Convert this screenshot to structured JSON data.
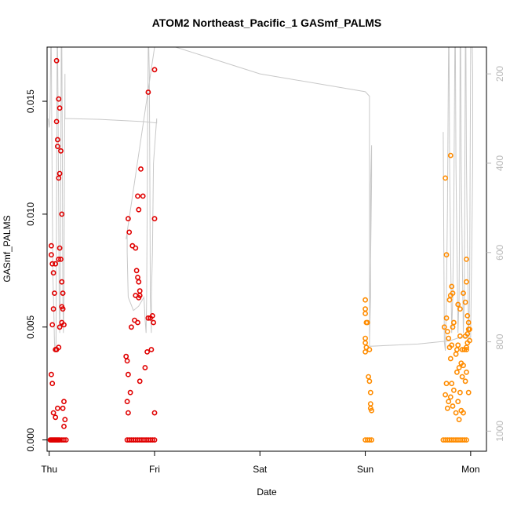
{
  "chart_data": {
    "type": "scatter",
    "title": "ATOM2 Northeast_Pacific_1 GASmf_PALMS",
    "xlabel": "Date",
    "ylabel": "GASmf_PALMS",
    "xlim": [
      -0.02,
      4.15
    ],
    "ylim": [
      -0.0005,
      0.0174
    ],
    "x_ticks": [
      {
        "x": 0,
        "label": "Thu"
      },
      {
        "x": 1,
        "label": "Fri"
      },
      {
        "x": 2,
        "label": "Sat"
      },
      {
        "x": 3,
        "label": "Sun"
      },
      {
        "x": 4,
        "label": "Mon"
      }
    ],
    "y_ticks": [
      {
        "y": 0.0,
        "label": "0.000"
      },
      {
        "y": 0.005,
        "label": "0.005"
      },
      {
        "y": 0.01,
        "label": "0.010"
      },
      {
        "y": 0.015,
        "label": "0.015"
      }
    ],
    "right_axis": {
      "inverted": true,
      "ylim": [
        1045,
        140
      ],
      "ticks": [
        {
          "y": 200,
          "label": "200"
        },
        {
          "y": 400,
          "label": "400"
        },
        {
          "y": 600,
          "label": "600"
        },
        {
          "y": 800,
          "label": "800"
        },
        {
          "y": 1000,
          "label": "1000"
        }
      ],
      "color": "#b8b8b8"
    },
    "grid": false,
    "legend": "none",
    "series": [
      {
        "color": "#e00000",
        "points": [
          [
            0.01,
            0.0
          ],
          [
            0.02,
            0.0
          ],
          [
            0.03,
            0.0
          ],
          [
            0.04,
            0.0
          ],
          [
            0.05,
            0.0
          ],
          [
            0.06,
            0.0
          ],
          [
            0.07,
            0.0
          ],
          [
            0.08,
            0.0
          ],
          [
            0.09,
            0.0
          ],
          [
            0.1,
            0.0
          ],
          [
            0.12,
            0.0
          ],
          [
            0.14,
            0.0
          ],
          [
            0.16,
            0.0
          ],
          [
            0.02,
            0.0029
          ],
          [
            0.03,
            0.0025
          ],
          [
            0.04,
            0.0012
          ],
          [
            0.06,
            0.001
          ],
          [
            0.08,
            0.0014
          ],
          [
            0.13,
            0.0014
          ],
          [
            0.14,
            0.0017
          ],
          [
            0.15,
            0.0009
          ],
          [
            0.14,
            0.0006
          ],
          [
            0.03,
            0.0051
          ],
          [
            0.04,
            0.0058
          ],
          [
            0.05,
            0.0065
          ],
          [
            0.06,
            0.004
          ],
          [
            0.07,
            0.004
          ],
          [
            0.09,
            0.0041
          ],
          [
            0.1,
            0.005
          ],
          [
            0.12,
            0.0052
          ],
          [
            0.14,
            0.0051
          ],
          [
            0.02,
            0.0082
          ],
          [
            0.02,
            0.0086
          ],
          [
            0.03,
            0.0078
          ],
          [
            0.04,
            0.0074
          ],
          [
            0.06,
            0.0078
          ],
          [
            0.09,
            0.008
          ],
          [
            0.1,
            0.0085
          ],
          [
            0.11,
            0.008
          ],
          [
            0.12,
            0.007
          ],
          [
            0.13,
            0.0065
          ],
          [
            0.12,
            0.0059
          ],
          [
            0.13,
            0.0058
          ],
          [
            0.09,
            0.0116
          ],
          [
            0.1,
            0.0118
          ],
          [
            0.12,
            0.01
          ],
          [
            0.07,
            0.0141
          ],
          [
            0.08,
            0.0133
          ],
          [
            0.08,
            0.013
          ],
          [
            0.09,
            0.0151
          ],
          [
            0.1,
            0.0147
          ],
          [
            0.11,
            0.0128
          ],
          [
            0.07,
            0.0168
          ]
        ]
      },
      {
        "color": "#e00000",
        "points": [
          [
            0.74,
            0.0
          ],
          [
            0.76,
            0.0
          ],
          [
            0.78,
            0.0
          ],
          [
            0.8,
            0.0
          ],
          [
            0.82,
            0.0
          ],
          [
            0.84,
            0.0
          ],
          [
            0.86,
            0.0
          ],
          [
            0.88,
            0.0
          ],
          [
            0.9,
            0.0
          ],
          [
            0.92,
            0.0
          ],
          [
            0.94,
            0.0
          ],
          [
            0.96,
            0.0
          ],
          [
            0.98,
            0.0
          ],
          [
            1.0,
            0.0
          ],
          [
            0.74,
            0.0017
          ],
          [
            0.75,
            0.0012
          ],
          [
            0.77,
            0.0021
          ],
          [
            0.86,
            0.0026
          ],
          [
            0.91,
            0.0032
          ],
          [
            0.93,
            0.0039
          ],
          [
            0.97,
            0.004
          ],
          [
            1.0,
            0.0012
          ],
          [
            0.73,
            0.0037
          ],
          [
            0.74,
            0.0035
          ],
          [
            0.75,
            0.0029
          ],
          [
            0.78,
            0.005
          ],
          [
            0.81,
            0.0053
          ],
          [
            0.84,
            0.0052
          ],
          [
            0.82,
            0.0064
          ],
          [
            0.85,
            0.0063
          ],
          [
            0.86,
            0.0066
          ],
          [
            0.94,
            0.0054
          ],
          [
            0.96,
            0.0054
          ],
          [
            0.98,
            0.0055
          ],
          [
            0.99,
            0.0052
          ],
          [
            0.75,
            0.0098
          ],
          [
            0.76,
            0.0092
          ],
          [
            0.79,
            0.0086
          ],
          [
            0.82,
            0.0085
          ],
          [
            0.83,
            0.0075
          ],
          [
            0.84,
            0.0072
          ],
          [
            0.85,
            0.007
          ],
          [
            0.86,
            0.0064
          ],
          [
            0.84,
            0.0108
          ],
          [
            0.89,
            0.0108
          ],
          [
            0.85,
            0.0102
          ],
          [
            0.87,
            0.012
          ],
          [
            1.0,
            0.0098
          ],
          [
            0.94,
            0.0154
          ],
          [
            1.0,
            0.0164
          ]
        ]
      },
      {
        "color": "#ff8c00",
        "points": [
          [
            3.0,
            0.0
          ],
          [
            3.02,
            0.0
          ],
          [
            3.04,
            0.0
          ],
          [
            3.06,
            0.0
          ],
          [
            3.0,
            0.0062
          ],
          [
            3.0,
            0.0058
          ],
          [
            3.0,
            0.0056
          ],
          [
            3.01,
            0.0052
          ],
          [
            3.02,
            0.0052
          ],
          [
            3.0,
            0.0045
          ],
          [
            3.0,
            0.0043
          ],
          [
            3.01,
            0.0041
          ],
          [
            3.0,
            0.0039
          ],
          [
            3.04,
            0.004
          ],
          [
            3.03,
            0.0028
          ],
          [
            3.04,
            0.0026
          ],
          [
            3.05,
            0.0021
          ],
          [
            3.05,
            0.0016
          ],
          [
            3.06,
            0.0013
          ],
          [
            3.05,
            0.0014
          ]
        ]
      },
      {
        "color": "#ff8c00",
        "points": [
          [
            3.74,
            0.0
          ],
          [
            3.76,
            0.0
          ],
          [
            3.78,
            0.0
          ],
          [
            3.8,
            0.0
          ],
          [
            3.82,
            0.0
          ],
          [
            3.84,
            0.0
          ],
          [
            3.86,
            0.0
          ],
          [
            3.88,
            0.0
          ],
          [
            3.9,
            0.0
          ],
          [
            3.92,
            0.0
          ],
          [
            3.94,
            0.0
          ],
          [
            3.96,
            0.0
          ],
          [
            3.76,
            0.002
          ],
          [
            3.77,
            0.0025
          ],
          [
            3.78,
            0.0014
          ],
          [
            3.79,
            0.0017
          ],
          [
            3.81,
            0.0019
          ],
          [
            3.82,
            0.0025
          ],
          [
            3.83,
            0.0015
          ],
          [
            3.84,
            0.0022
          ],
          [
            3.86,
            0.0012
          ],
          [
            3.87,
            0.003
          ],
          [
            3.88,
            0.0017
          ],
          [
            3.89,
            0.0009
          ],
          [
            3.9,
            0.0021
          ],
          [
            3.91,
            0.0013
          ],
          [
            3.92,
            0.0028
          ],
          [
            3.93,
            0.0012
          ],
          [
            3.95,
            0.0026
          ],
          [
            3.96,
            0.003
          ],
          [
            3.98,
            0.0021
          ],
          [
            3.75,
            0.005
          ],
          [
            3.77,
            0.0054
          ],
          [
            3.78,
            0.0048
          ],
          [
            3.79,
            0.0045
          ],
          [
            3.8,
            0.0041
          ],
          [
            3.81,
            0.0036
          ],
          [
            3.82,
            0.0042
          ],
          [
            3.83,
            0.005
          ],
          [
            3.84,
            0.0052
          ],
          [
            3.86,
            0.0038
          ],
          [
            3.87,
            0.004
          ],
          [
            3.88,
            0.0042
          ],
          [
            3.89,
            0.0032
          ],
          [
            3.9,
            0.0046
          ],
          [
            3.91,
            0.0034
          ],
          [
            3.92,
            0.004
          ],
          [
            3.93,
            0.0033
          ],
          [
            3.94,
            0.004
          ],
          [
            3.95,
            0.0046
          ],
          [
            3.96,
            0.004
          ],
          [
            3.97,
            0.0047
          ],
          [
            3.98,
            0.0049
          ],
          [
            3.99,
            0.0044
          ],
          [
            3.97,
            0.0043
          ],
          [
            3.96,
            0.0041
          ],
          [
            3.8,
            0.0062
          ],
          [
            3.81,
            0.0064
          ],
          [
            3.82,
            0.0068
          ],
          [
            3.83,
            0.0065
          ],
          [
            3.88,
            0.006
          ],
          [
            3.9,
            0.0058
          ],
          [
            3.93,
            0.0065
          ],
          [
            3.95,
            0.0061
          ],
          [
            3.96,
            0.007
          ],
          [
            3.97,
            0.0055
          ],
          [
            3.98,
            0.0052
          ],
          [
            3.99,
            0.0049
          ],
          [
            3.77,
            0.0082
          ],
          [
            3.96,
            0.008
          ],
          [
            3.76,
            0.0116
          ],
          [
            3.81,
            0.0126
          ]
        ]
      }
    ],
    "gray_line": {
      "color": "#c8c8c8",
      "note_units": "right_axis",
      "points": [
        [
          -0.01,
          300
        ],
        [
          0.0,
          320
        ],
        [
          0.005,
          310
        ],
        [
          0.01,
          260
        ],
        [
          0.015,
          140
        ],
        [
          0.02,
          140
        ],
        [
          0.025,
          320
        ],
        [
          0.03,
          500
        ],
        [
          0.035,
          650
        ],
        [
          0.04,
          700
        ],
        [
          0.045,
          740
        ],
        [
          0.05,
          800
        ],
        [
          0.055,
          820
        ],
        [
          0.06,
          820
        ],
        [
          0.065,
          800
        ],
        [
          0.07,
          500
        ],
        [
          0.075,
          140
        ],
        [
          0.08,
          140
        ],
        [
          0.085,
          300
        ],
        [
          0.09,
          500
        ],
        [
          0.095,
          700
        ],
        [
          0.1,
          780
        ],
        [
          0.105,
          700
        ],
        [
          0.11,
          400
        ],
        [
          0.115,
          140
        ],
        [
          0.12,
          140
        ],
        [
          0.125,
          400
        ],
        [
          0.13,
          700
        ],
        [
          0.135,
          780
        ],
        [
          0.14,
          700
        ],
        [
          0.145,
          400
        ],
        [
          0.15,
          200
        ],
        [
          0.15,
          300
        ],
        [
          0.5,
          302
        ],
        [
          0.9,
          307
        ],
        [
          1.02,
          310
        ],
        [
          1.02,
          300
        ],
        [
          0.99,
          400
        ],
        [
          0.98,
          600
        ],
        [
          0.97,
          700
        ],
        [
          0.97,
          780
        ],
        [
          0.96,
          700
        ],
        [
          0.955,
          400
        ],
        [
          0.95,
          200
        ],
        [
          0.945,
          140
        ],
        [
          0.94,
          140
        ],
        [
          0.935,
          300
        ],
        [
          0.93,
          500
        ],
        [
          0.925,
          700
        ],
        [
          0.92,
          780
        ],
        [
          0.91,
          750
        ],
        [
          0.9,
          700
        ],
        [
          0.85,
          720
        ],
        [
          0.8,
          730
        ],
        [
          0.75,
          700
        ],
        [
          0.74,
          600
        ],
        [
          0.74,
          560
        ],
        [
          0.73,
          570
        ],
        [
          1.0,
          140
        ],
        [
          1.2,
          140
        ],
        [
          2.0,
          200
        ],
        [
          3.0,
          240
        ],
        [
          3.04,
          250
        ],
        [
          3.04,
          800
        ],
        [
          3.05,
          700
        ],
        [
          3.05,
          450
        ],
        [
          3.06,
          360
        ],
        [
          3.06,
          440
        ],
        [
          3.04,
          810
        ],
        [
          3.5,
          805
        ],
        [
          3.7,
          800
        ],
        [
          3.8,
          798
        ],
        [
          3.9,
          790
        ],
        [
          4.0,
          790
        ],
        [
          4.0,
          780
        ],
        [
          4.01,
          600
        ],
        [
          4.02,
          400
        ],
        [
          4.02,
          200
        ],
        [
          4.015,
          140
        ],
        [
          4.0,
          140
        ],
        [
          3.995,
          400
        ],
        [
          3.99,
          700
        ],
        [
          3.98,
          790
        ],
        [
          3.97,
          600
        ],
        [
          3.96,
          400
        ],
        [
          3.955,
          140
        ],
        [
          3.95,
          140
        ],
        [
          3.945,
          400
        ],
        [
          3.94,
          700
        ],
        [
          3.93,
          780
        ],
        [
          3.92,
          600
        ],
        [
          3.91,
          400
        ],
        [
          3.905,
          140
        ],
        [
          3.9,
          140
        ],
        [
          3.895,
          500
        ],
        [
          3.89,
          700
        ],
        [
          3.88,
          780
        ],
        [
          3.87,
          600
        ],
        [
          3.86,
          400
        ],
        [
          3.855,
          140
        ],
        [
          3.85,
          140
        ],
        [
          3.84,
          500
        ],
        [
          3.83,
          700
        ],
        [
          3.82,
          780
        ],
        [
          3.81,
          600
        ],
        [
          3.8,
          400
        ],
        [
          3.795,
          140
        ],
        [
          3.79,
          140
        ],
        [
          3.78,
          500
        ],
        [
          3.77,
          700
        ],
        [
          3.76,
          820
        ],
        [
          3.75,
          800
        ],
        [
          3.74,
          330
        ]
      ]
    }
  }
}
